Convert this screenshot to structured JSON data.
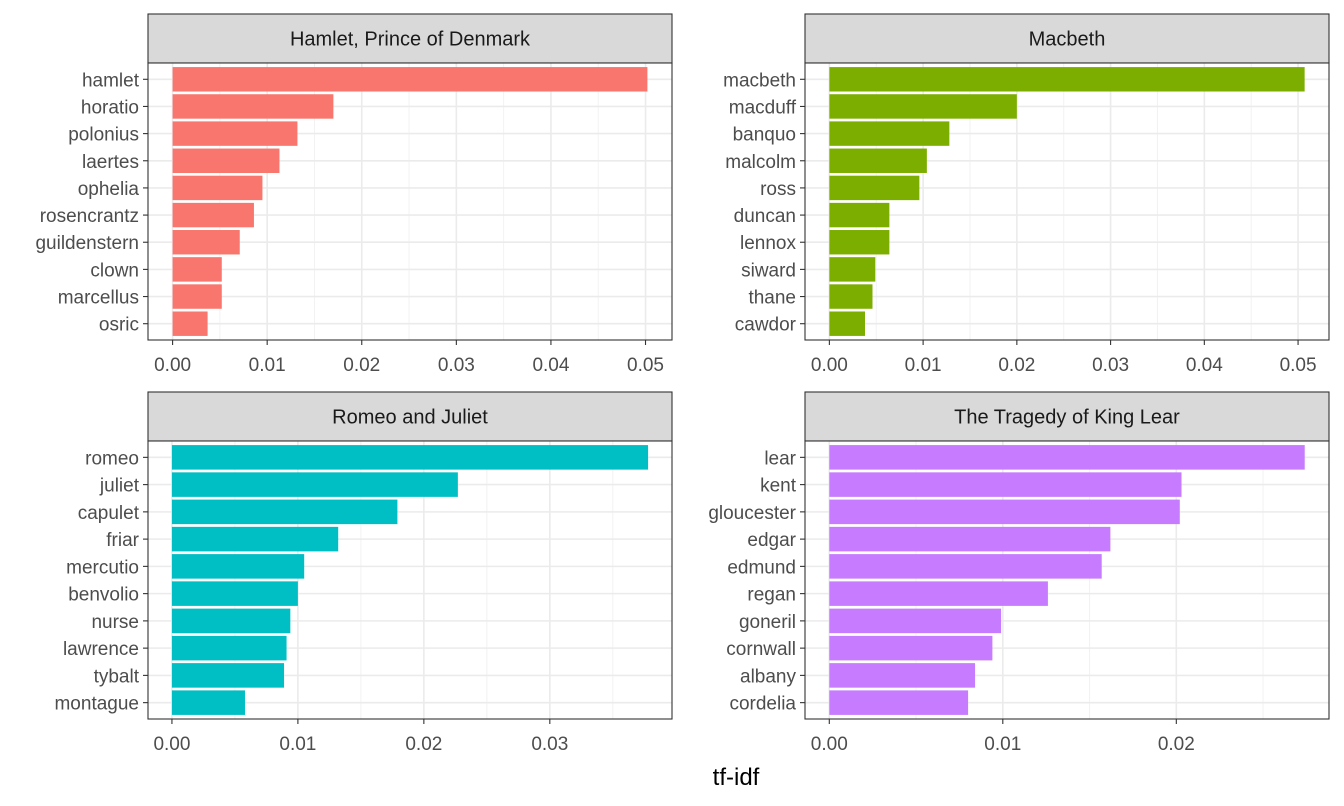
{
  "chart_data": {
    "type": "bar",
    "orientation": "horizontal",
    "layout": "facet-grid-2x2",
    "xlabel": "tf-idf",
    "ylabel": "",
    "grid": true,
    "legend": "none",
    "facets": [
      {
        "title": "Hamlet, Prince of Denmark",
        "color": "#F8766D",
        "categories": [
          "hamlet",
          "horatio",
          "polonius",
          "laertes",
          "ophelia",
          "rosencrantz",
          "guildenstern",
          "clown",
          "marcellus",
          "osric"
        ],
        "values": [
          0.0502,
          0.017,
          0.0132,
          0.0113,
          0.0095,
          0.0086,
          0.0071,
          0.0052,
          0.0052,
          0.0037
        ],
        "xlim": [
          -0.0026,
          0.0528
        ],
        "xticks": [
          0,
          0.01,
          0.02,
          0.03,
          0.04,
          0.05
        ],
        "xtick_labels": [
          "0.00",
          "0.01",
          "0.02",
          "0.03",
          "0.04",
          "0.05"
        ]
      },
      {
        "title": "Macbeth",
        "color": "#7CAE00",
        "categories": [
          "macbeth",
          "macduff",
          "banquo",
          "malcolm",
          "ross",
          "duncan",
          "lennox",
          "siward",
          "thane",
          "cawdor"
        ],
        "values": [
          0.0507,
          0.02,
          0.0128,
          0.0104,
          0.0096,
          0.0064,
          0.0064,
          0.0049,
          0.0046,
          0.0038
        ],
        "xlim": [
          -0.0026,
          0.0533
        ],
        "xticks": [
          0,
          0.01,
          0.02,
          0.03,
          0.04,
          0.05
        ],
        "xtick_labels": [
          "0.00",
          "0.01",
          "0.02",
          "0.03",
          "0.04",
          "0.05"
        ]
      },
      {
        "title": "Romeo and Juliet",
        "color": "#00BFC4",
        "categories": [
          "romeo",
          "juliet",
          "capulet",
          "friar",
          "mercutio",
          "benvolio",
          "nurse",
          "lawrence",
          "tybalt",
          "montague"
        ],
        "values": [
          0.0378,
          0.0227,
          0.0179,
          0.0132,
          0.0105,
          0.01,
          0.0094,
          0.0091,
          0.0089,
          0.0058
        ],
        "xlim": [
          -0.0019,
          0.0397
        ],
        "xticks": [
          0,
          0.01,
          0.02,
          0.03
        ],
        "xtick_labels": [
          "0.00",
          "0.01",
          "0.02",
          "0.03"
        ]
      },
      {
        "title": "The Tragedy of King Lear",
        "color": "#C77CFF",
        "categories": [
          "lear",
          "kent",
          "gloucester",
          "edgar",
          "edmund",
          "regan",
          "goneril",
          "cornwall",
          "albany",
          "cordelia"
        ],
        "values": [
          0.0274,
          0.0203,
          0.0202,
          0.0162,
          0.0157,
          0.0126,
          0.0099,
          0.0094,
          0.0084,
          0.008
        ],
        "xlim": [
          -0.0014,
          0.0288
        ],
        "xticks": [
          0,
          0.01,
          0.02
        ],
        "xtick_labels": [
          "0.00",
          "0.01",
          "0.02"
        ]
      }
    ]
  }
}
